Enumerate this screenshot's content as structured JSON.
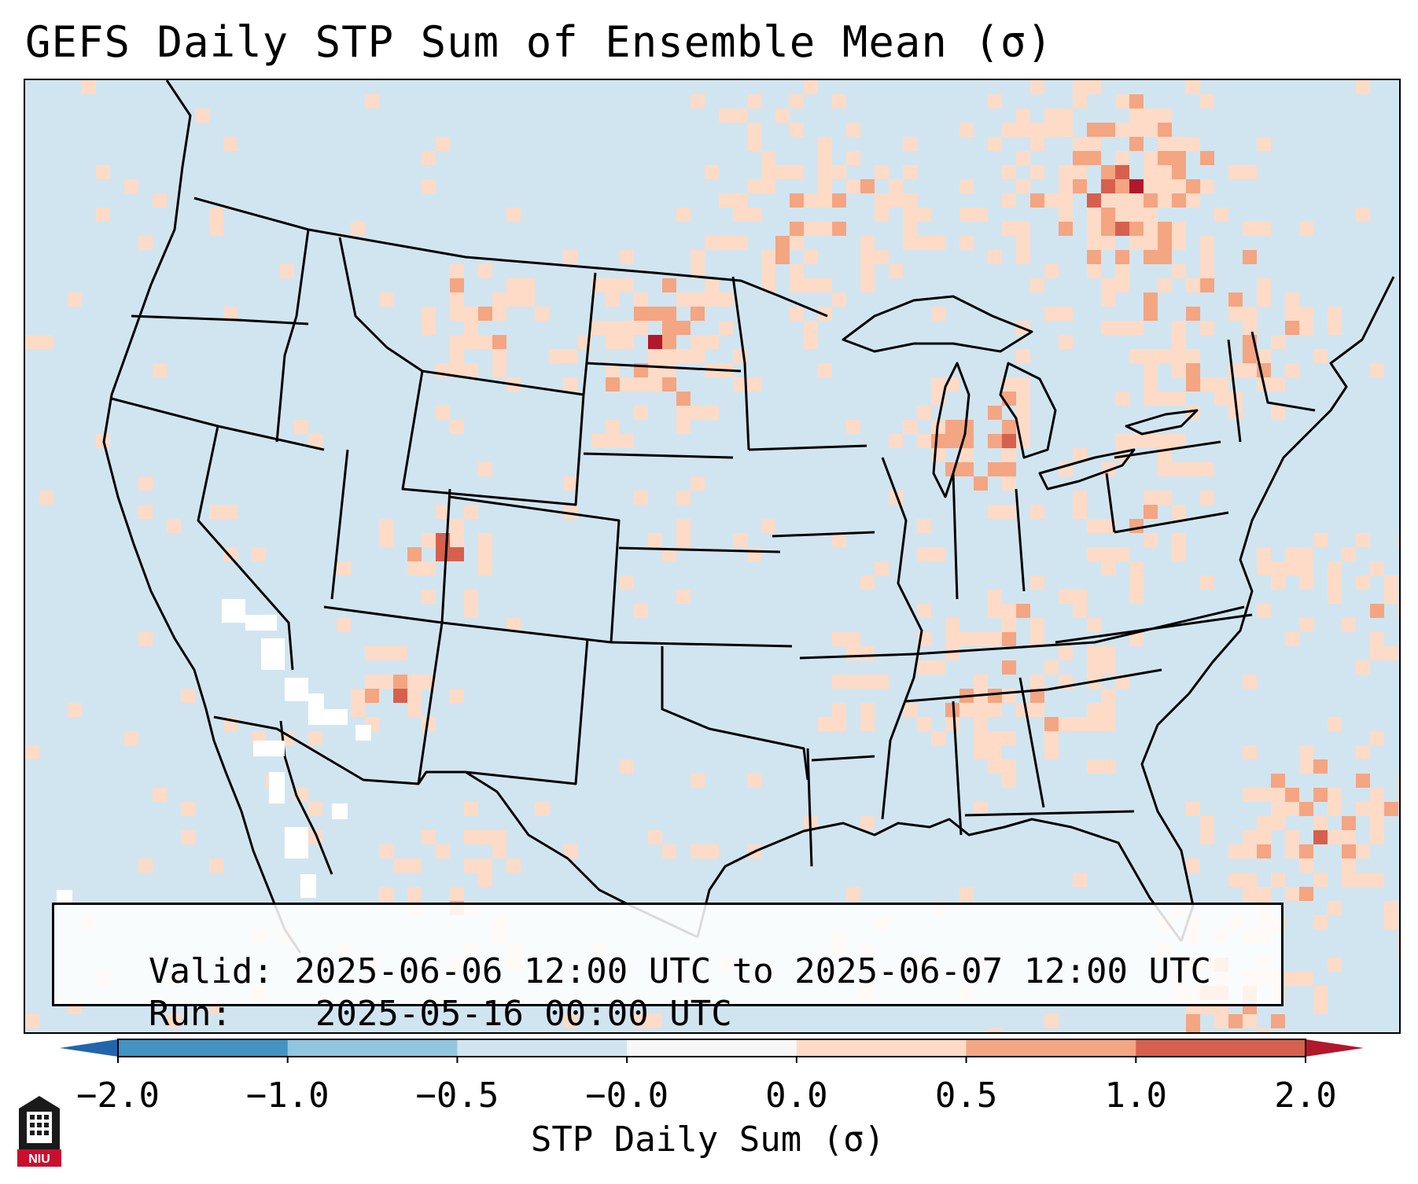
{
  "title": "GEFS Daily STP Sum of Ensemble Mean (σ)",
  "info": {
    "valid_label": "Valid:",
    "valid_value": "2025-06-06 12:00 UTC to 2025-06-07 12:00 UTC",
    "run_label": "Run:",
    "run_value": "2025-05-16 00:00 UTC"
  },
  "colorbar": {
    "label": "STP Daily Sum (σ)",
    "ticks": [
      "−2.0",
      "−1.0",
      "−0.5",
      "−0.0",
      "0.0",
      "0.5",
      "1.0",
      "2.0"
    ],
    "bins": [
      {
        "range": "-2.0 to -1.0",
        "color": "#4393c3"
      },
      {
        "range": "-1.0 to -0.5",
        "color": "#92c5de"
      },
      {
        "range": "-0.5 to -0.0",
        "color": "#d1e5f0"
      },
      {
        "range": "-0.0 to 0.0",
        "color": "#f7f7f7"
      },
      {
        "range": "0.0 to 0.5",
        "color": "#fddbc7"
      },
      {
        "range": "0.5 to 1.0",
        "color": "#f4a582"
      },
      {
        "range": "1.0 to 2.0",
        "color": "#d6604d"
      }
    ],
    "extend_low_color": "#2166ac",
    "extend_high_color": "#b2182b"
  },
  "map": {
    "region": "Contiguous United States",
    "background_color": "#d1e5f0",
    "line_color": "#000000",
    "hotspots_description": [
      {
        "area": "Lower Michigan",
        "level": "1.0 to 2.0"
      },
      {
        "area": "Central/North Dakota",
        "level": "0.5 to 2.0"
      },
      {
        "area": "Tennessee Valley",
        "level": "0.5 to 1.0"
      },
      {
        "area": "Western Colorado",
        "level": "1.0 to 2.0"
      },
      {
        "area": "Ontario/Quebec",
        "level": "1.0 to 2.0"
      }
    ]
  },
  "logo": {
    "text": "NIU",
    "bg_color": "#c8102e"
  }
}
